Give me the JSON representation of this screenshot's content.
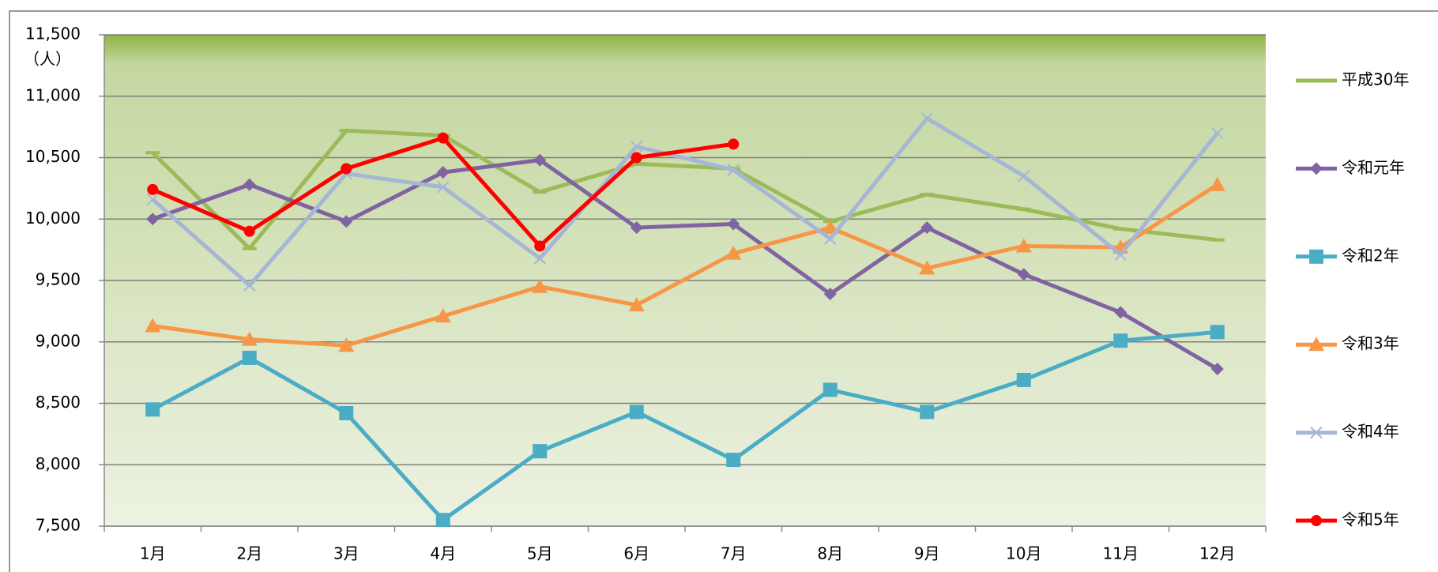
{
  "chart_data": {
    "type": "line",
    "y_unit_label": "（人）",
    "categories": [
      "1月",
      "2月",
      "3月",
      "4月",
      "5月",
      "6月",
      "7月",
      "8月",
      "9月",
      "10月",
      "11月",
      "12月"
    ],
    "ylim": [
      7500,
      11500
    ],
    "yticks": [
      {
        "value": 7500,
        "label": "7,500"
      },
      {
        "value": 8000,
        "label": "8,000"
      },
      {
        "value": 8500,
        "label": "8,500"
      },
      {
        "value": 9000,
        "label": "9,000"
      },
      {
        "value": 9500,
        "label": "9,500"
      },
      {
        "value": 10000,
        "label": "10,000"
      },
      {
        "value": 10500,
        "label": "10,500"
      },
      {
        "value": 11000,
        "label": "11,000"
      },
      {
        "value": 11500,
        "label": "11,500"
      }
    ],
    "grid": true,
    "legend": "right",
    "series": [
      {
        "name": "平成30年",
        "color": "#9bbb59",
        "marker": "dash",
        "values": [
          10540,
          9760,
          10720,
          10680,
          10220,
          10450,
          10410,
          9980,
          10200,
          10080,
          9920,
          9830
        ]
      },
      {
        "name": "令和元年",
        "color": "#8064a2",
        "marker": "diamond",
        "values": [
          10000,
          10280,
          9980,
          10380,
          10480,
          9930,
          9960,
          9390,
          9930,
          9550,
          9240,
          8780
        ]
      },
      {
        "name": "令和2年",
        "color": "#4bacc6",
        "marker": "square",
        "values": [
          8450,
          8870,
          8420,
          7550,
          8110,
          8430,
          8040,
          8610,
          8430,
          8690,
          9010,
          9080
        ]
      },
      {
        "name": "令和3年",
        "color": "#f79646",
        "marker": "triangle",
        "values": [
          9130,
          9020,
          8970,
          9210,
          9450,
          9300,
          9720,
          9930,
          9600,
          9780,
          9770,
          10280
        ]
      },
      {
        "name": "令和4年",
        "color": "#a5b6d6",
        "marker": "x",
        "values": [
          10160,
          9460,
          10370,
          10260,
          9680,
          10590,
          10400,
          9840,
          10820,
          10350,
          9710,
          10700
        ]
      },
      {
        "name": "令和5年",
        "color": "#ff0000",
        "marker": "circle",
        "values": [
          10240,
          9900,
          10410,
          10660,
          9780,
          10500,
          10610,
          null,
          null,
          null,
          null,
          null
        ]
      }
    ]
  }
}
